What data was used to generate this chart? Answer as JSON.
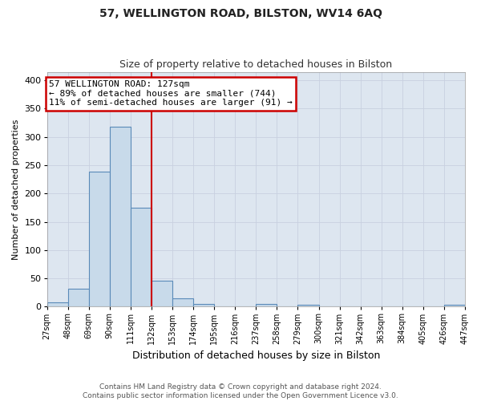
{
  "title": "57, WELLINGTON ROAD, BILSTON, WV14 6AQ",
  "subtitle": "Size of property relative to detached houses in Bilston",
  "xlabel": "Distribution of detached houses by size in Bilston",
  "ylabel": "Number of detached properties",
  "bar_color": "#c8daea",
  "bar_edge_color": "#5a8ab8",
  "bar_left_edges": [
    27,
    48,
    69,
    90,
    111,
    132,
    153,
    174,
    195,
    216,
    237,
    258,
    279,
    300,
    321,
    342,
    363,
    384,
    405,
    426
  ],
  "bar_heights": [
    8,
    32,
    238,
    318,
    175,
    46,
    15,
    5,
    0,
    0,
    5,
    0,
    3,
    0,
    0,
    0,
    0,
    0,
    0,
    3
  ],
  "bin_width": 21,
  "tick_labels": [
    "27sqm",
    "48sqm",
    "69sqm",
    "90sqm",
    "111sqm",
    "132sqm",
    "153sqm",
    "174sqm",
    "195sqm",
    "216sqm",
    "237sqm",
    "258sqm",
    "279sqm",
    "300sqm",
    "321sqm",
    "342sqm",
    "363sqm",
    "384sqm",
    "405sqm",
    "426sqm",
    "447sqm"
  ],
  "vline_x": 132,
  "annotation_line1": "57 WELLINGTON ROAD: 127sqm",
  "annotation_line2": "← 89% of detached houses are smaller (744)",
  "annotation_line3": "11% of semi-detached houses are larger (91) →",
  "annotation_box_color": "#ffffff",
  "annotation_box_edge_color": "#cc0000",
  "vline_color": "#cc0000",
  "ylim": [
    0,
    415
  ],
  "yticks": [
    0,
    50,
    100,
    150,
    200,
    250,
    300,
    350,
    400
  ],
  "grid_color": "#c8d0e0",
  "plot_bg_color": "#dde6f0",
  "fig_bg_color": "#ffffff",
  "footnote_line1": "Contains HM Land Registry data © Crown copyright and database right 2024.",
  "footnote_line2": "Contains public sector information licensed under the Open Government Licence v3.0.",
  "title_fontsize": 10,
  "subtitle_fontsize": 9,
  "xlabel_fontsize": 9,
  "ylabel_fontsize": 8,
  "tick_fontsize": 7,
  "footnote_fontsize": 6.5,
  "annotation_fontsize": 8
}
